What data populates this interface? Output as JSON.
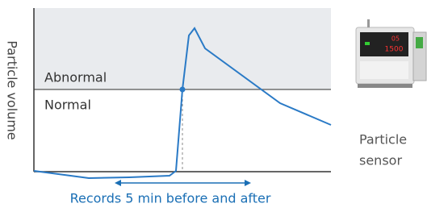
{
  "y_axis_label": "Particle volume",
  "zones": {
    "upper": "Abnormal",
    "lower": "Normal"
  },
  "caption": "Records 5 min before and after",
  "device_label": [
    "Particle",
    "sensor"
  ]
}
